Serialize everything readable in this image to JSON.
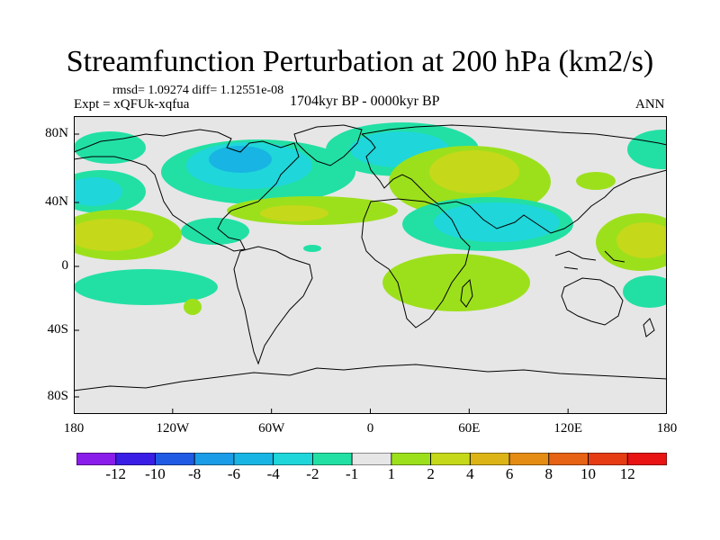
{
  "title": "Streamfunction Perturbation at 200 hPa (km2/s)",
  "meta": {
    "rmsd": "rmsd= 1.09274 diff= 1.12551e-08",
    "expt": "Expt = xQFUk-xqfua",
    "period": "1704kyr BP - 0000kyr BP",
    "season": "ANN"
  },
  "axes": {
    "lon_ticks": [
      "180",
      "120W",
      "60W",
      "0",
      "60E",
      "120E",
      "180"
    ],
    "lat_ticks": [
      "80N",
      "40N",
      "0",
      "40S",
      "80S"
    ]
  },
  "colorbar": {
    "labels": [
      "-12",
      "-10",
      "-8",
      "-6",
      "-4",
      "-2",
      "-1",
      "1",
      "2",
      "4",
      "6",
      "8",
      "10",
      "12"
    ],
    "colors": [
      "#8a1dea",
      "#3a1ee6",
      "#1f5be3",
      "#1b9ce6",
      "#18b4e3",
      "#1fd6da",
      "#22e0a4",
      "#e6e6e6",
      "#9ce01c",
      "#c5d81a",
      "#dcb416",
      "#e48c14",
      "#e66214",
      "#e63c14",
      "#e81414"
    ]
  },
  "map": {
    "background": "#e6e6e6",
    "colors": {
      "neg1": "#22e0a4",
      "neg2": "#1fd6da",
      "neg3": "#18b4e3",
      "pos1": "#9ce01c",
      "pos2": "#c5d81a",
      "pos3": "#dcb416"
    }
  }
}
